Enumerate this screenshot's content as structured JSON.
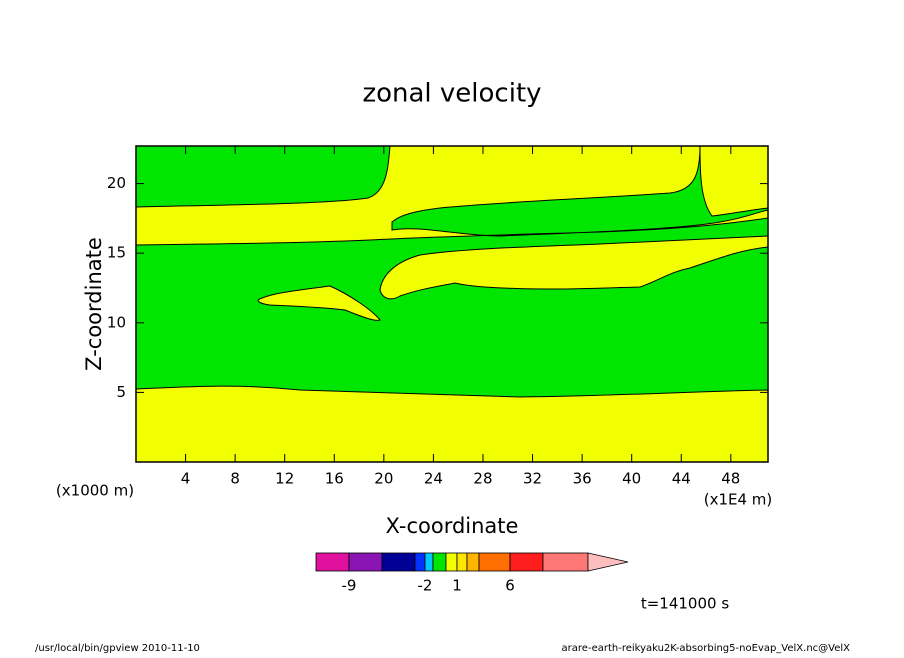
{
  "chart_data": {
    "type": "contour",
    "title": "zonal velocity",
    "x_label": "X-coordinate",
    "y_label": "Z-coordinate",
    "x_unit": "(x1E4 m)",
    "y_unit": "(x1000 m)",
    "xlim": [
      0,
      51
    ],
    "ylim": [
      0,
      22.7
    ],
    "xticks": [
      4,
      8,
      12,
      16,
      20,
      24,
      28,
      32,
      36,
      40,
      44,
      48
    ],
    "yticks": [
      5,
      10,
      15,
      20
    ],
    "colors": {
      "positive": "#f2ff00",
      "negative": "#00e600"
    },
    "colorbar": {
      "colors": [
        "#e0119e",
        "#8a14b4",
        "#000096",
        "#0032ff",
        "#00c8ff",
        "#00e600",
        "#f2ff00",
        "#ffe600",
        "#ffb400",
        "#ff6e00",
        "#ff1e1e",
        "#ff7878",
        "#ffbebe"
      ],
      "ticks": [
        -9,
        -2,
        1,
        6
      ]
    },
    "time_label": "t=141000 s",
    "footer_left": "/usr/local/bin/gpview  2010-11-10",
    "footer_right": "arare-earth-reikyaku2K-absorbing5-noEvap_VelX.nc@VelX"
  }
}
